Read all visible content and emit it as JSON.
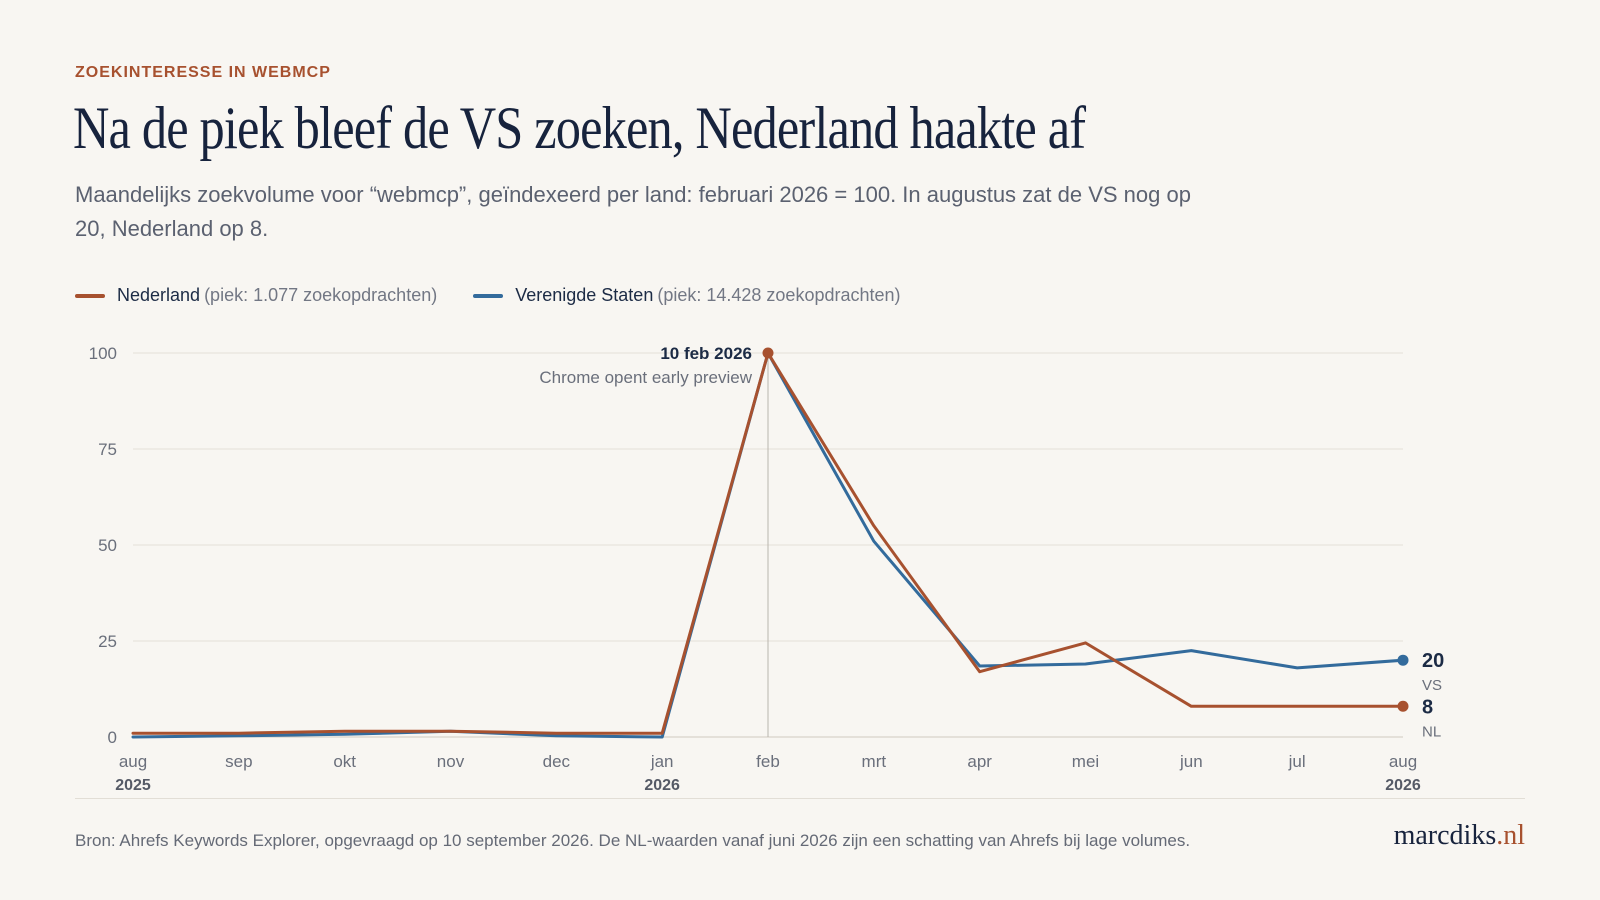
{
  "header": {
    "kicker": "ZOEKINTERESSE IN WEBMCP",
    "title": "Na de piek bleef de VS zoeken, Nederland haakte af",
    "subtitle": "Maandelijks zoekvolume voor “webmcp”, geïndexeerd per land: februari 2026 = 100. In augustus zat de VS nog op 20, Nederland op 8."
  },
  "legend": [
    {
      "name": "Nederland",
      "note": "(piek: 1.077 zoekopdrachten)",
      "color": "#a7512f"
    },
    {
      "name": "Verenigde Staten",
      "note": "(piek: 14.428 zoekopdrachten)",
      "color": "#336b9c"
    }
  ],
  "chart_data": {
    "type": "line",
    "categories": [
      "aug",
      "sep",
      "okt",
      "nov",
      "dec",
      "jan",
      "feb",
      "mrt",
      "apr",
      "mei",
      "jun",
      "jul",
      "aug"
    ],
    "category_years": {
      "0": "2025",
      "5": "2026",
      "12": "2026"
    },
    "ylim": [
      0,
      100
    ],
    "yticks": [
      0,
      25,
      50,
      75,
      100
    ],
    "grid": true,
    "series": [
      {
        "name": "Nederland",
        "short": "NL",
        "color": "#a7512f",
        "values": [
          1,
          1,
          1.5,
          1.5,
          1,
          1,
          100,
          55,
          17,
          24.5,
          8,
          8,
          8
        ],
        "end_label": "8"
      },
      {
        "name": "Verenigde Staten",
        "short": "VS",
        "color": "#336b9c",
        "values": [
          0,
          0.3,
          0.7,
          1.5,
          0.3,
          0,
          100,
          51,
          18.5,
          19,
          22.5,
          18,
          20
        ],
        "end_label": "20"
      }
    ],
    "annotation": {
      "index": 6,
      "value": 100,
      "title": "10 feb 2026",
      "text": "Chrome opent early preview"
    }
  },
  "footer": {
    "source": "Bron: Ahrefs Keywords Explorer, opgevraagd op 10 september 2026. De NL-waarden vanaf juni 2026 zijn een schatting van Ahrefs bij lage volumes.",
    "brand_main": "marcdiks",
    "brand_tld": ".nl"
  }
}
